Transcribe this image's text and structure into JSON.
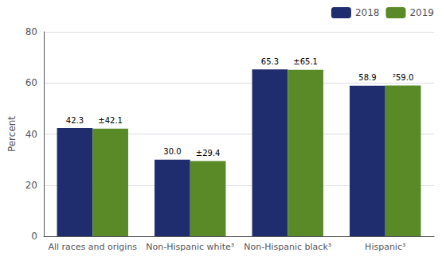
{
  "chart_data": {
    "type": "bar",
    "categories": [
      "All races and origins",
      "Non-Hispanic white³",
      "Non-Hispanic black³",
      "Hispanic³"
    ],
    "series": [
      {
        "name": "2018",
        "color": "#1f2d6e",
        "values": [
          42.3,
          30.0,
          65.3,
          58.9
        ],
        "value_labels": [
          "42.3",
          "30.0",
          "65.3",
          "58.9"
        ]
      },
      {
        "name": "2019",
        "color": "#5a8a28",
        "values": [
          42.1,
          29.4,
          65.1,
          59.0
        ],
        "value_labels": [
          "±42.1",
          "±29.4",
          "±65.1",
          "²59.0"
        ]
      }
    ],
    "ylabel": "Percent",
    "ylim": [
      0,
      80
    ],
    "yticks": [
      0,
      20,
      40,
      60,
      80
    ],
    "grid": true,
    "legend": "upper right",
    "data_labels": true
  }
}
